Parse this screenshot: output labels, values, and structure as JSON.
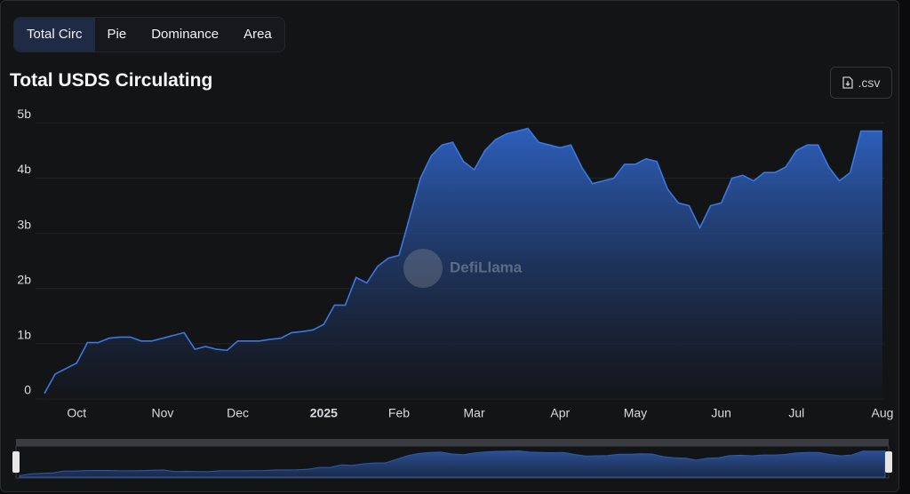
{
  "tabs": [
    "Total Circ",
    "Pie",
    "Dominance",
    "Area"
  ],
  "csv_button": ".csv",
  "watermark": "DefiLlama",
  "chart_data": {
    "type": "area",
    "title": "Total USDS Circulating",
    "color": "#3a78e0",
    "categories": [
      null,
      null,
      null,
      "Oct",
      null,
      null,
      null,
      null,
      null,
      null,
      null,
      "Nov",
      null,
      null,
      null,
      null,
      null,
      null,
      "Dec",
      null,
      null,
      null,
      null,
      null,
      null,
      null,
      "2025",
      null,
      null,
      null,
      null,
      null,
      null,
      "Feb",
      null,
      null,
      null,
      null,
      null,
      null,
      "Mar",
      null,
      null,
      null,
      null,
      null,
      null,
      null,
      "Apr",
      null,
      null,
      null,
      null,
      null,
      null,
      "May",
      null,
      null,
      null,
      null,
      null,
      null,
      null,
      "Jun",
      null,
      null,
      null,
      null,
      null,
      null,
      "Jul",
      null,
      null,
      null,
      null,
      null,
      null,
      null,
      "Aug"
    ],
    "values": [
      0.1,
      0.45,
      0.55,
      0.65,
      1.02,
      1.02,
      1.1,
      1.12,
      1.12,
      1.05,
      1.05,
      1.1,
      1.15,
      1.2,
      0.9,
      0.95,
      0.9,
      0.88,
      1.05,
      1.05,
      1.05,
      1.08,
      1.1,
      1.2,
      1.22,
      1.25,
      1.35,
      1.7,
      1.7,
      2.2,
      2.1,
      2.4,
      2.55,
      2.6,
      3.3,
      4.0,
      4.4,
      4.6,
      4.65,
      4.3,
      4.15,
      4.5,
      4.7,
      4.8,
      4.85,
      4.9,
      4.65,
      4.6,
      4.55,
      4.6,
      4.2,
      3.9,
      3.95,
      4.0,
      4.25,
      4.25,
      4.35,
      4.3,
      3.8,
      3.55,
      3.5,
      3.1,
      3.5,
      3.55,
      4.0,
      4.05,
      3.95,
      4.1,
      4.1,
      4.2,
      4.5,
      4.6,
      4.6,
      4.2,
      3.95,
      4.1,
      4.85,
      4.85,
      4.85
    ],
    "ylim": [
      0,
      5.15
    ],
    "yticks": [
      0,
      {
        "value": 1,
        "label": "1b"
      },
      {
        "value": 2,
        "label": "2b"
      },
      {
        "value": 3,
        "label": "3b"
      },
      {
        "value": 4,
        "label": "4b"
      },
      {
        "value": 5,
        "label": "5b"
      }
    ],
    "grid": true
  }
}
